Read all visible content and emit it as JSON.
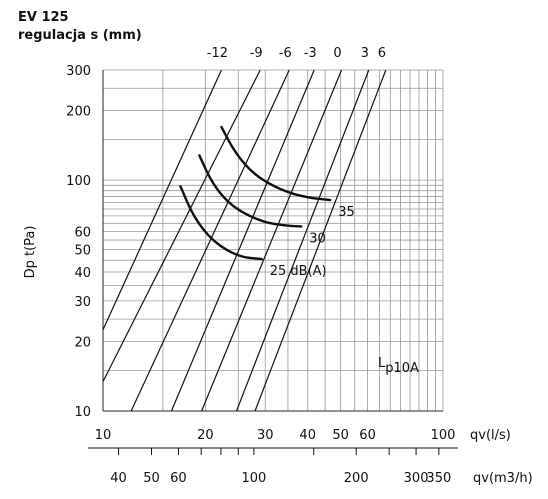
{
  "header": {
    "title": "EV 125",
    "subtitle": "regulacja s (mm)"
  },
  "chart_data": {
    "type": "line",
    "title": "EV 125",
    "subtitle": "regulacja s (mm)",
    "xlabel": "qv(l/s)",
    "xlabel_secondary": "qv(m3/h)",
    "ylabel": "Dp t(Pa)",
    "x_scale": "log",
    "y_scale": "log",
    "xlim": [
      10,
      100
    ],
    "ylim": [
      10,
      300
    ],
    "grid": true,
    "x_ticks": [
      10,
      20,
      30,
      40,
      50,
      60,
      100
    ],
    "x_ticks_secondary": [
      40,
      50,
      60,
      100,
      200,
      300,
      350
    ],
    "y_ticks": [
      10,
      20,
      30,
      40,
      50,
      60,
      100,
      200,
      300
    ],
    "top_labels": [
      "-12",
      "-9",
      "-6",
      "-3",
      "0",
      "3",
      "6"
    ],
    "regulation_lines": [
      {
        "s": "-12",
        "points": [
          [
            10,
            22.5
          ],
          [
            22.3,
            300
          ]
        ]
      },
      {
        "s": "-9",
        "points": [
          [
            10,
            13.4
          ],
          [
            29,
            300
          ]
        ]
      },
      {
        "s": "-6",
        "points": [
          [
            12.1,
            10
          ],
          [
            35.3,
            300
          ]
        ]
      },
      {
        "s": "-3",
        "points": [
          [
            15.9,
            10
          ],
          [
            41.8,
            300
          ]
        ]
      },
      {
        "s": "0",
        "points": [
          [
            19.5,
            10
          ],
          [
            50.3,
            300
          ]
        ]
      },
      {
        "s": "3",
        "points": [
          [
            24.7,
            10
          ],
          [
            60.5,
            300
          ]
        ]
      },
      {
        "s": "6",
        "points": [
          [
            28,
            10
          ],
          [
            67.9,
            300
          ]
        ]
      }
    ],
    "noise_curves": [
      {
        "label": "25 dB(A)",
        "points": [
          [
            16.9,
            94
          ],
          [
            18.5,
            69
          ],
          [
            21.1,
            54
          ],
          [
            25.1,
            46.5
          ],
          [
            29.3,
            45.5
          ]
        ]
      },
      {
        "label": "30",
        "points": [
          [
            19.2,
            128
          ],
          [
            21.1,
            95
          ],
          [
            24.1,
            76
          ],
          [
            29.3,
            66
          ],
          [
            34.2,
            63.5
          ],
          [
            38.3,
            63
          ]
        ]
      },
      {
        "label": "35",
        "points": [
          [
            22.3,
            170
          ],
          [
            24.5,
            131
          ],
          [
            27.9,
            105
          ],
          [
            33.6,
            90
          ],
          [
            39.9,
            84
          ],
          [
            46.6,
            82
          ]
        ]
      }
    ],
    "annotations": [
      "35",
      "30",
      "25 dB(A)"
    ],
    "footnote": {
      "text": "L",
      "subscript": "p10A"
    }
  }
}
